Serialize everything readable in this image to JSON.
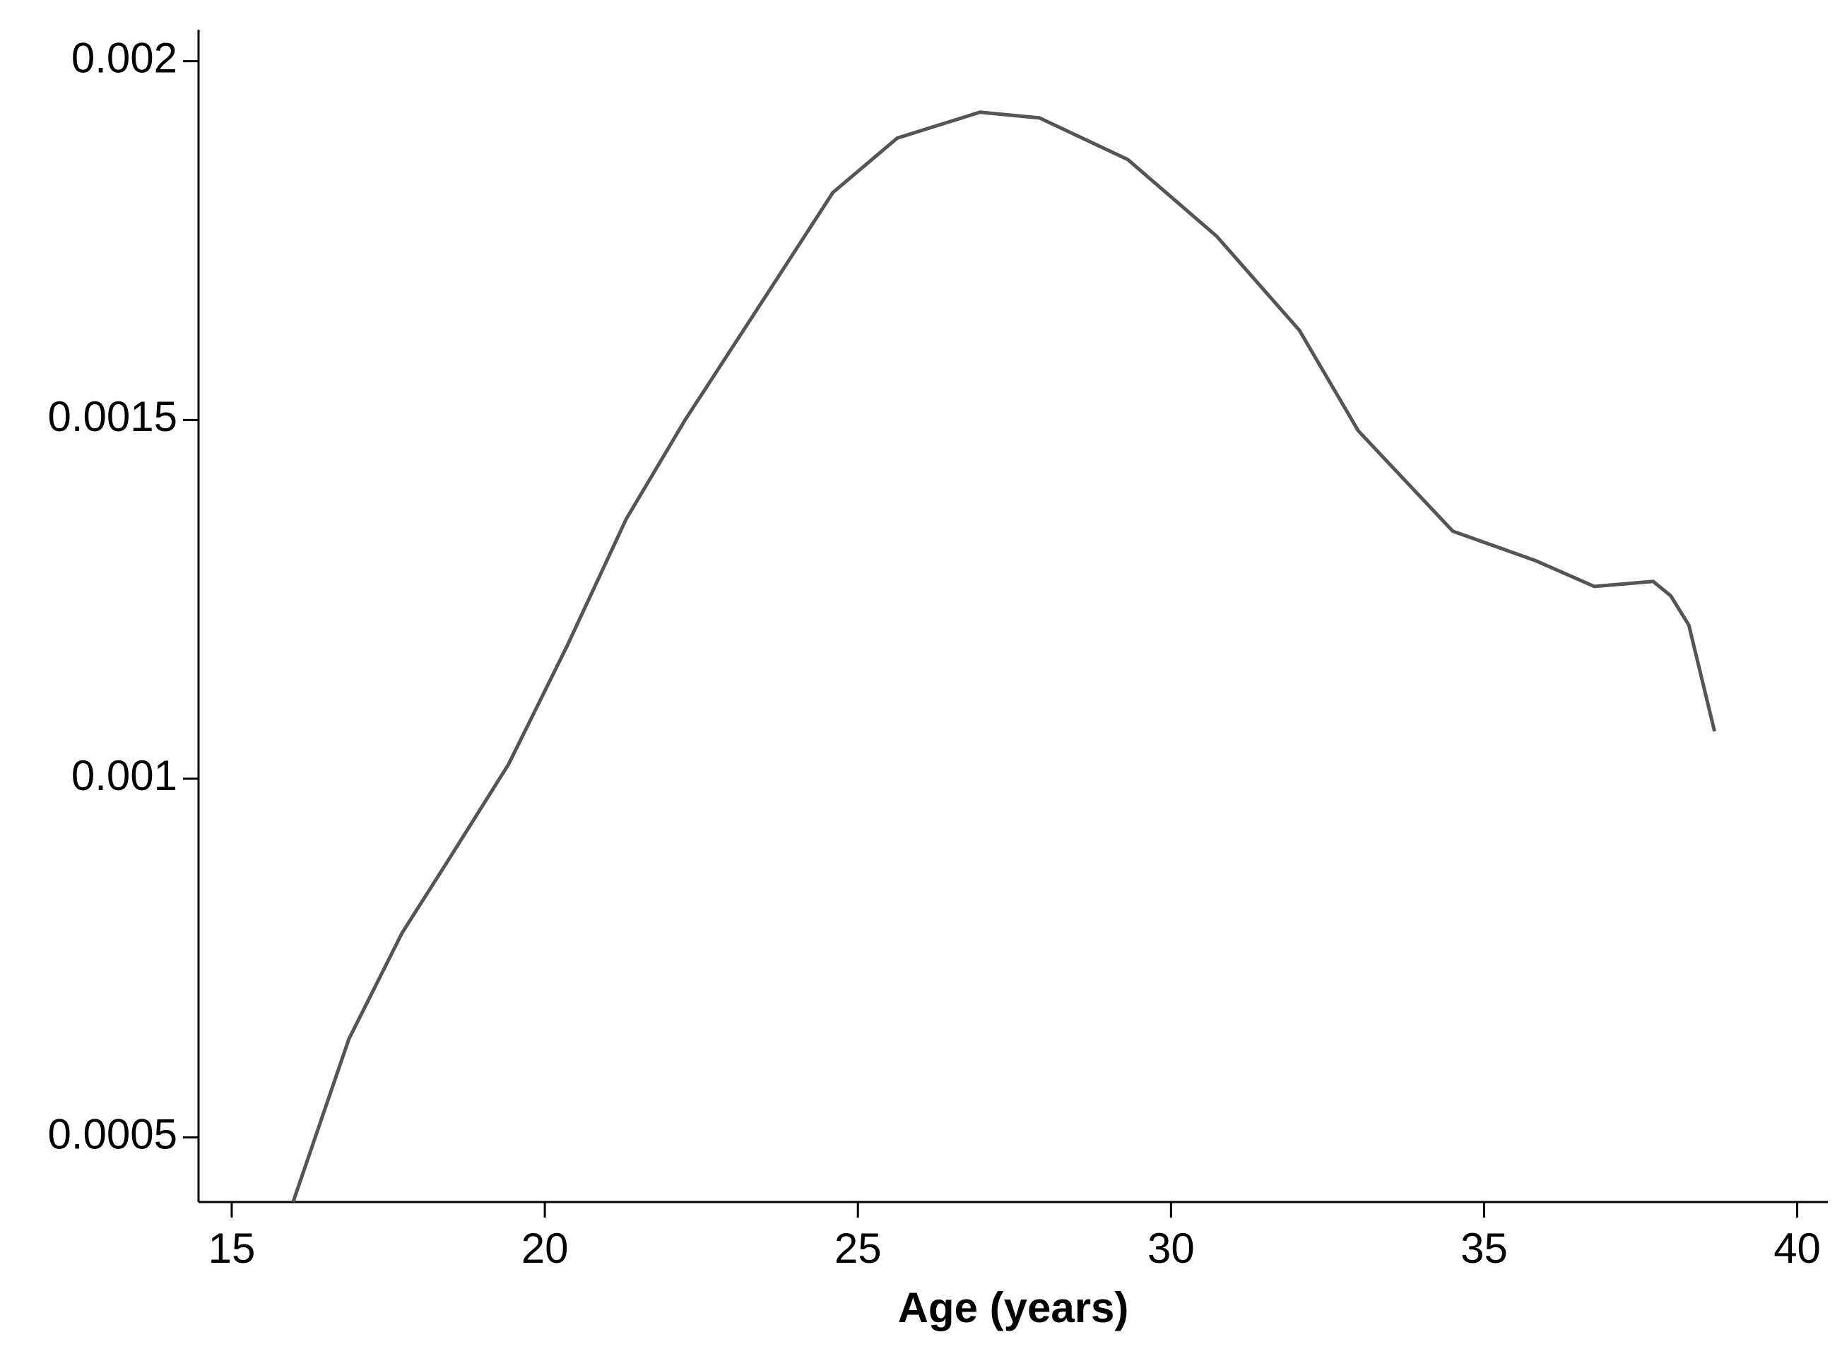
{
  "chart_data": {
    "type": "line",
    "xlabel": "Age (years)",
    "xlim": [
      14.47,
      40.49
    ],
    "xticks": [
      15,
      20,
      25,
      30,
      35,
      40
    ],
    "ylim": [
      0.00041,
      0.002044
    ],
    "yticks": [
      0.0005,
      0.001,
      0.0015,
      0.002
    ],
    "grid": false,
    "x": [
      15.98,
      16.87,
      17.72,
      18.47,
      19.42,
      20.35,
      21.3,
      22.24,
      23.56,
      24.6,
      25.63,
      26.95,
      27.9,
      29.31,
      30.73,
      32.05,
      32.99,
      34.5,
      35.82,
      36.76,
      37.7,
      37.98,
      38.27,
      38.68
    ],
    "series": [
      {
        "color": "#555555",
        "values": [
          0.00041,
          0.000637,
          0.000785,
          0.000888,
          0.00102,
          0.001184,
          0.001362,
          0.0015,
          0.001677,
          0.001817,
          0.001893,
          0.001929,
          0.001921,
          0.001863,
          0.001756,
          0.001625,
          0.001485,
          0.001345,
          0.001304,
          0.001268,
          0.001275,
          0.001255,
          0.001214,
          0.001066
        ]
      }
    ]
  }
}
